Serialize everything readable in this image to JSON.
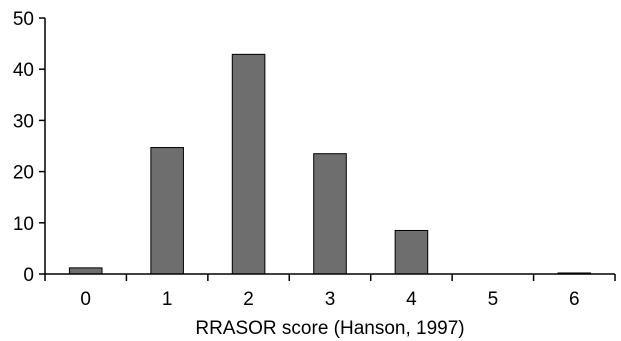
{
  "chart_data": {
    "type": "bar",
    "title": "",
    "xlabel": "RRASOR score (Hanson, 1997)",
    "ylabel": "",
    "categories": [
      "0",
      "1",
      "2",
      "3",
      "4",
      "5",
      "6"
    ],
    "values": [
      1.2,
      24.7,
      42.9,
      23.5,
      8.5,
      0,
      0.2
    ],
    "ylim": [
      0,
      50
    ],
    "yticks": [
      0,
      10,
      20,
      30,
      40,
      50
    ],
    "ytick_labels": [
      "0",
      "10",
      "20",
      "30",
      "40",
      "50"
    ],
    "grid": false,
    "legend": "none",
    "bar_color": "#6e6e6e",
    "bar_edge_color": "#000000"
  }
}
